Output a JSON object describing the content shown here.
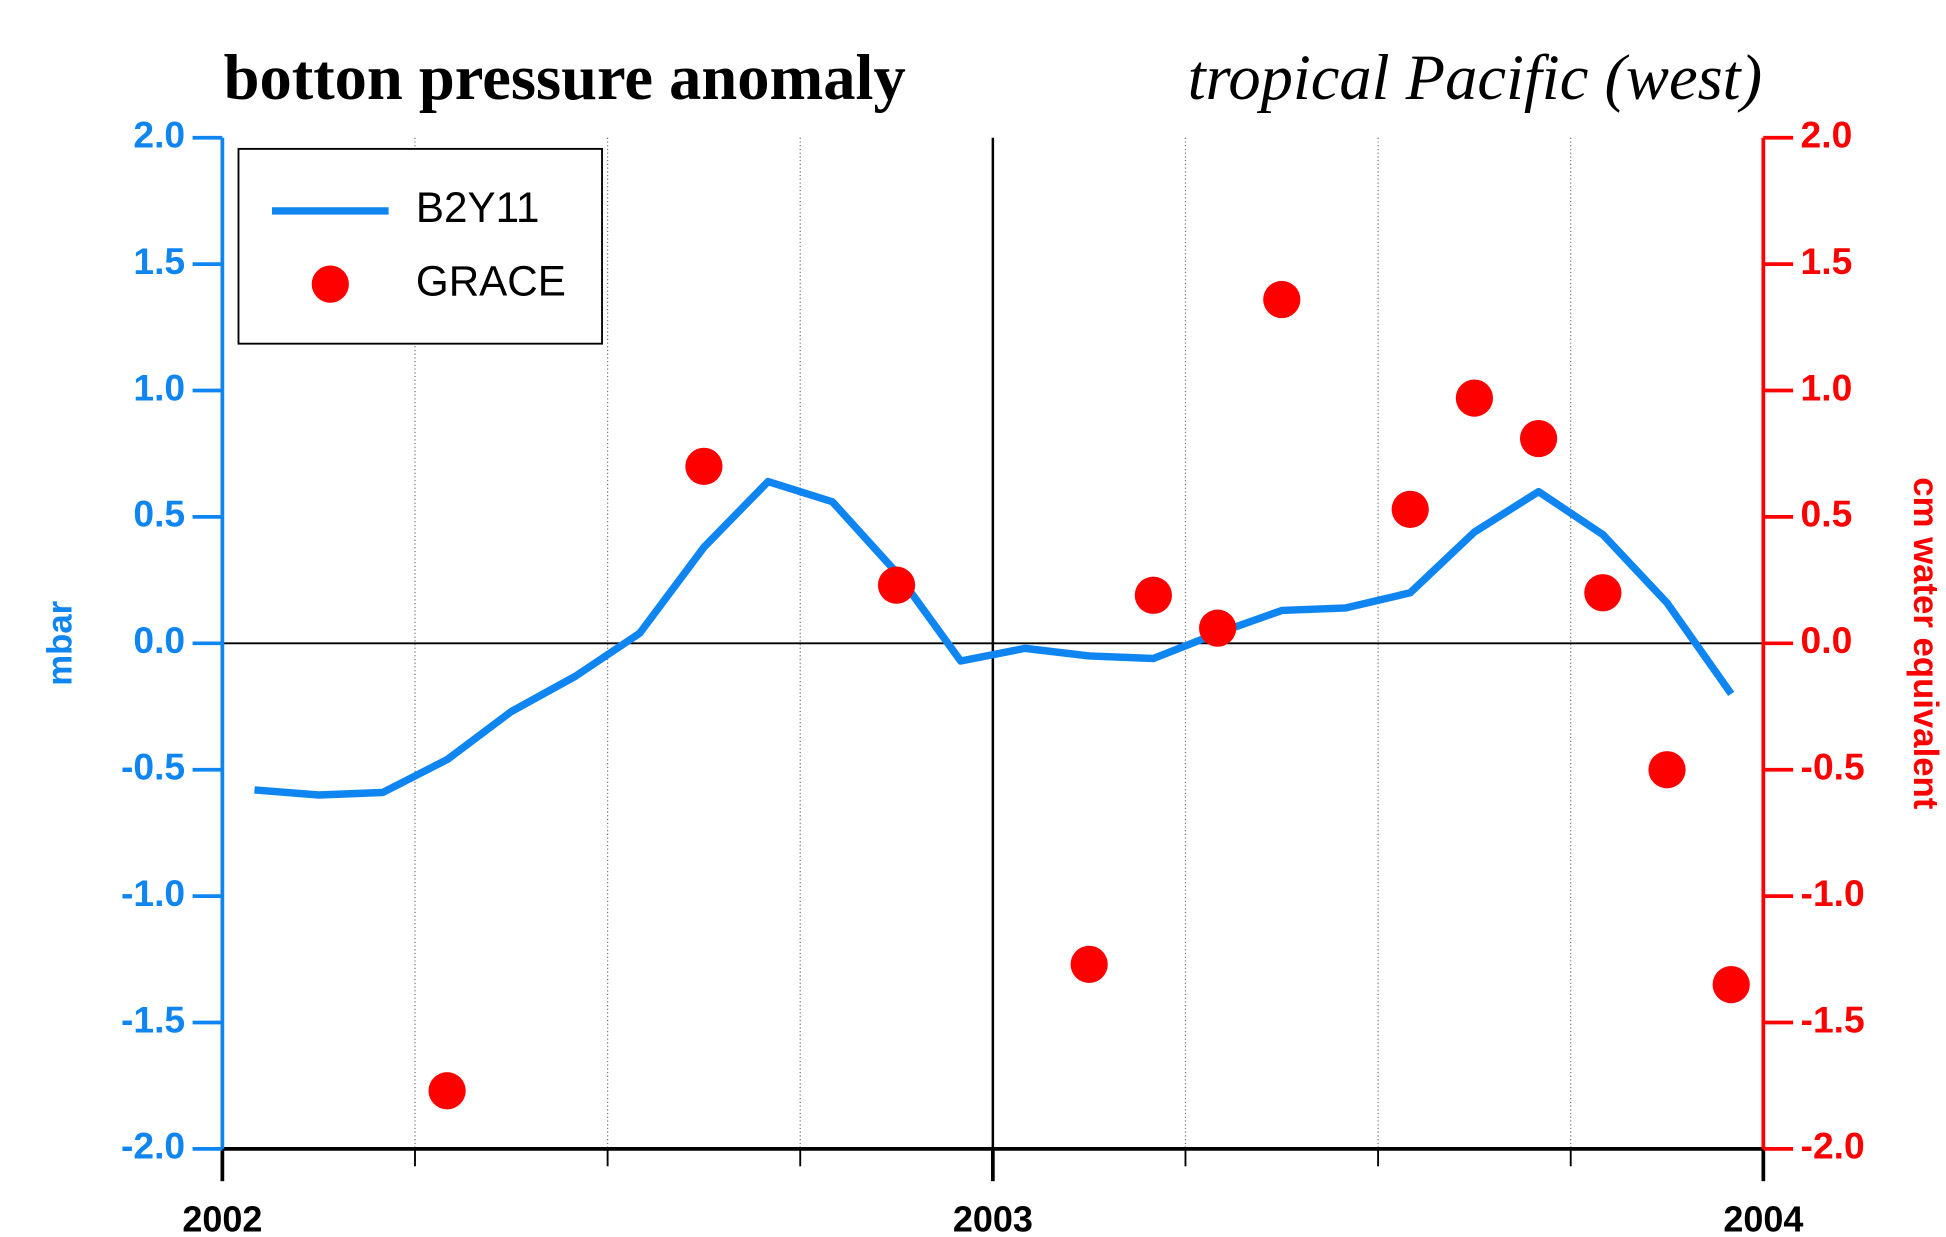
{
  "chart_data": {
    "type": "line",
    "title": "botton pressure anomaly",
    "subtitle": "tropical Pacific (west)",
    "y_label": "mbar",
    "y2_label": "cm water equivalent",
    "xlim": [
      2002,
      2004
    ],
    "xticks": [
      2002,
      2003,
      2004
    ],
    "xminorticks": [
      2002.25,
      2002.5,
      2002.75,
      2003.25,
      2003.5,
      2003.75
    ],
    "ylim": [
      -2.0,
      2.0
    ],
    "yticks": [
      {
        "value": -2,
        "label": "-2.0"
      },
      {
        "value": -1.5,
        "label": "-1.5"
      },
      {
        "value": -1,
        "label": "-1.0"
      },
      {
        "value": -0.5,
        "label": "-0.5"
      },
      {
        "value": 0,
        "label": "0.0"
      },
      {
        "value": 0.5,
        "label": "0.5"
      },
      {
        "value": 1,
        "label": "1.0"
      },
      {
        "value": 1.5,
        "label": "1.5"
      },
      {
        "value": 2,
        "label": "2.0"
      }
    ],
    "y2lim": [
      -2.0,
      2.0
    ],
    "y2ticks": [
      {
        "value": -2,
        "label": "-2.0"
      },
      {
        "value": -1.5,
        "label": "-1.5"
      },
      {
        "value": -1,
        "label": "-1.0"
      },
      {
        "value": -0.5,
        "label": "-0.5"
      },
      {
        "value": 0,
        "label": "0.0"
      },
      {
        "value": 0.5,
        "label": "0.5"
      },
      {
        "value": 1,
        "label": "1.0"
      },
      {
        "value": 1.5,
        "label": "1.5"
      },
      {
        "value": 2,
        "label": "2.0"
      }
    ],
    "grid": true,
    "legend": "upper left",
    "y_color": "#0f85f2",
    "y2_color": "#ff0000",
    "series": [
      {
        "name": "B2Y11",
        "color": "#0f85f2",
        "style": "line",
        "x": [
          2002.0417,
          2002.125,
          2002.2083,
          2002.2917,
          2002.375,
          2002.4583,
          2002.5417,
          2002.625,
          2002.7083,
          2002.7917,
          2002.875,
          2002.9583,
          2003.0417,
          2003.125,
          2003.2083,
          2003.2917,
          2003.375,
          2003.4583,
          2003.5417,
          2003.625,
          2003.7083,
          2003.7917,
          2003.875,
          2003.9583
        ],
        "values": [
          -0.58,
          -0.6,
          -0.59,
          -0.46,
          -0.27,
          -0.13,
          0.04,
          0.38,
          0.64,
          0.56,
          0.28,
          -0.07,
          -0.02,
          -0.05,
          -0.06,
          0.04,
          0.13,
          0.14,
          0.2,
          0.44,
          0.6,
          0.43,
          0.16,
          -0.2
        ]
      },
      {
        "name": "GRACE",
        "color": "#ff0000",
        "style": "marker",
        "axis": "y2",
        "x": [
          2002.2917,
          2002.625,
          2002.875,
          2003.125,
          2003.2083,
          2003.2917,
          2003.375,
          2003.5417,
          2003.625,
          2003.7083,
          2003.7917,
          2003.875,
          2003.9583
        ],
        "values": [
          -1.77,
          0.7,
          0.23,
          -1.27,
          0.19,
          0.06,
          1.36,
          0.53,
          0.97,
          0.81,
          0.2,
          -0.5,
          -1.35
        ]
      }
    ]
  }
}
